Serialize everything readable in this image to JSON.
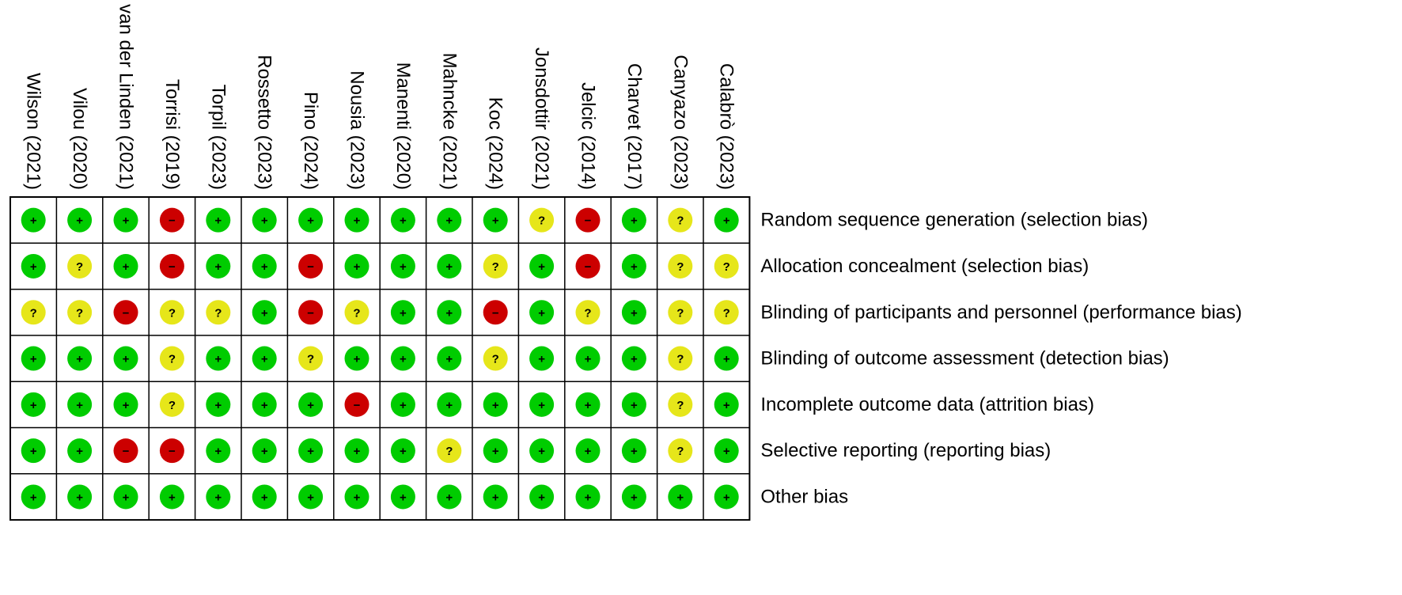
{
  "chart_data": {
    "type": "table",
    "studies": [
      "Wilson (2021)",
      "Vilou (2020)",
      "van der Linden (2021)",
      "Torrisi (2019)",
      "Torpil (2023)",
      "Rossetto (2023)",
      "Pino (2024)",
      "Nousia (2023)",
      "Manenti (2020)",
      "Mahncke (2021)",
      "Koc (2024)",
      "Jonsdottir (2021)",
      "Jelcic (2014)",
      "Charvet (2017)",
      "Canyazo (2023)",
      "Calabrò (2023)"
    ],
    "domains": [
      "Random sequence generation (selection bias)",
      "Allocation concealment (selection bias)",
      "Blinding of participants and personnel (performance bias)",
      "Blinding of outcome assessment (detection bias)",
      "Incomplete outcome data (attrition bias)",
      "Selective reporting (reporting bias)",
      "Other bias"
    ],
    "ratings": [
      [
        "low",
        "low",
        "low",
        "high",
        "low",
        "low",
        "low",
        "low",
        "low",
        "low",
        "low",
        "unclear",
        "high",
        "low",
        "unclear",
        "low"
      ],
      [
        "low",
        "unclear",
        "low",
        "high",
        "low",
        "low",
        "high",
        "low",
        "low",
        "low",
        "unclear",
        "low",
        "high",
        "low",
        "unclear",
        "unclear"
      ],
      [
        "unclear",
        "unclear",
        "high",
        "unclear",
        "unclear",
        "low",
        "high",
        "unclear",
        "low",
        "low",
        "high",
        "low",
        "unclear",
        "low",
        "unclear",
        "unclear"
      ],
      [
        "low",
        "low",
        "low",
        "unclear",
        "low",
        "low",
        "unclear",
        "low",
        "low",
        "low",
        "unclear",
        "low",
        "low",
        "low",
        "unclear",
        "low"
      ],
      [
        "low",
        "low",
        "low",
        "unclear",
        "low",
        "low",
        "low",
        "high",
        "low",
        "low",
        "low",
        "low",
        "low",
        "low",
        "unclear",
        "low"
      ],
      [
        "low",
        "low",
        "high",
        "high",
        "low",
        "low",
        "low",
        "low",
        "low",
        "unclear",
        "low",
        "low",
        "low",
        "low",
        "unclear",
        "low"
      ],
      [
        "low",
        "low",
        "low",
        "low",
        "low",
        "low",
        "low",
        "low",
        "low",
        "low",
        "low",
        "low",
        "low",
        "low",
        "low",
        "low"
      ]
    ],
    "symbols": {
      "low": "+",
      "unclear": "?",
      "high": "−"
    },
    "colors": {
      "low": "#00cc00",
      "unclear": "#e6e61a",
      "high": "#cc0000",
      "grid": "#000000"
    }
  }
}
